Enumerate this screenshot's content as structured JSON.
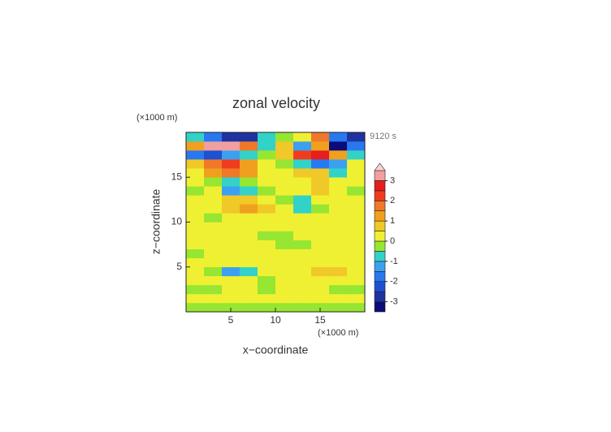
{
  "chart_data": {
    "type": "contour",
    "title": "zonal velocity",
    "time_label": "9120 s",
    "x_label": "x−coordinate",
    "y_label": "z−coordinate",
    "x_unit": "(×1000 m)",
    "y_unit": "(×1000 m)",
    "xlim": [
      0,
      20
    ],
    "ylim": [
      0,
      20
    ],
    "xticks": [
      5,
      10,
      15
    ],
    "yticks": [
      5,
      10,
      15
    ],
    "x": [
      1,
      3,
      5,
      7,
      9,
      11,
      13,
      15,
      17,
      19
    ],
    "y": [
      0.5,
      1.5,
      2.5,
      3.5,
      4.5,
      5.5,
      6.5,
      7.5,
      8.5,
      9.5,
      10.5,
      11.5,
      12.5,
      13.5,
      14.5,
      15.5,
      16.5,
      17.5,
      18.5,
      19.5
    ],
    "z": [
      [
        -0.2,
        -0.3,
        -0.2,
        -0.1,
        -0.3,
        -0.2,
        -0.3,
        -0.2,
        -0.2,
        -0.3
      ],
      [
        0.2,
        0.3,
        0.2,
        0.2,
        0.3,
        0.4,
        0.3,
        0.2,
        0.3,
        0.2
      ],
      [
        -0.2,
        -0.3,
        0.2,
        0.3,
        -0.2,
        0.2,
        0.1,
        0.3,
        -0.2,
        -0.1
      ],
      [
        0.2,
        0.3,
        0.2,
        0.1,
        -0.2,
        0.2,
        0.3,
        0.2,
        0.1,
        0.2
      ],
      [
        0.2,
        -0.5,
        -1.1,
        -0.6,
        0.2,
        0.3,
        0.2,
        0.6,
        0.8,
        0.3
      ],
      [
        0.2,
        0.3,
        0.2,
        0.4,
        0.3,
        0.2,
        0.3,
        0.2,
        0.4,
        0.3
      ],
      [
        -0.2,
        0.2,
        0.3,
        0.2,
        0.3,
        0.2,
        0.3,
        0.2,
        0.1,
        0.2
      ],
      [
        0.1,
        0.2,
        0.2,
        0.3,
        0.2,
        -0.3,
        -0.4,
        0.2,
        0.3,
        0.2
      ],
      [
        0.2,
        0.1,
        0.3,
        0.2,
        -0.3,
        -0.2,
        0.3,
        0.2,
        0.1,
        0.2
      ],
      [
        0.3,
        0.2,
        0.2,
        0.3,
        0.1,
        0.2,
        0.3,
        0.2,
        0.3,
        0.2
      ],
      [
        0.2,
        -0.2,
        0.3,
        0.4,
        0.2,
        0.3,
        0.4,
        0.3,
        0.2,
        0.1
      ],
      [
        0.3,
        0.2,
        0.8,
        1.1,
        0.6,
        0.1,
        -0.8,
        -0.3,
        0.2,
        0.3
      ],
      [
        0.2,
        0.3,
        0.6,
        0.8,
        0.2,
        -0.2,
        -0.6,
        0.2,
        0.3,
        0.2
      ],
      [
        -0.3,
        0.2,
        -1.2,
        -0.6,
        -0.2,
        0.3,
        0.2,
        0.5,
        0.3,
        -0.2
      ],
      [
        0.2,
        -0.3,
        -1,
        -0.5,
        0.2,
        0.1,
        0.3,
        0.7,
        0.4,
        0.2
      ],
      [
        0.3,
        1,
        1.5,
        1,
        0.3,
        0.2,
        0.5,
        0.8,
        -0.7,
        0.2
      ],
      [
        0.5,
        1.5,
        2,
        1,
        0.2,
        -0.5,
        -1,
        -2,
        -1.5,
        0.2
      ],
      [
        -2,
        -2.5,
        -1.5,
        -1,
        -0.5,
        0.5,
        2,
        2.5,
        1,
        -1
      ],
      [
        1,
        3,
        3.2,
        1.5,
        -1,
        0.5,
        -1.5,
        1,
        -3.4,
        -2
      ],
      [
        -1,
        -2,
        -3,
        -3,
        -1,
        -0.5,
        0,
        1.5,
        -2,
        -3
      ]
    ],
    "colorbar": {
      "levels": [
        -3.5,
        -3,
        -2.5,
        -2,
        -1.5,
        -1,
        -0.5,
        0,
        0.5,
        1,
        1.5,
        2,
        2.5,
        3,
        3.5
      ],
      "colors": [
        "#0c0c78",
        "#1e32a0",
        "#1e50d2",
        "#2878f0",
        "#3ca0f0",
        "#32d2c8",
        "#96e632",
        "#f0f032",
        "#f0c828",
        "#f0a01e",
        "#f07828",
        "#f03c1e",
        "#e61e1e",
        "#f0a0a0",
        "#fad2d2"
      ],
      "ticks": [
        -3,
        -2,
        -1,
        0,
        1,
        2,
        3
      ]
    }
  }
}
